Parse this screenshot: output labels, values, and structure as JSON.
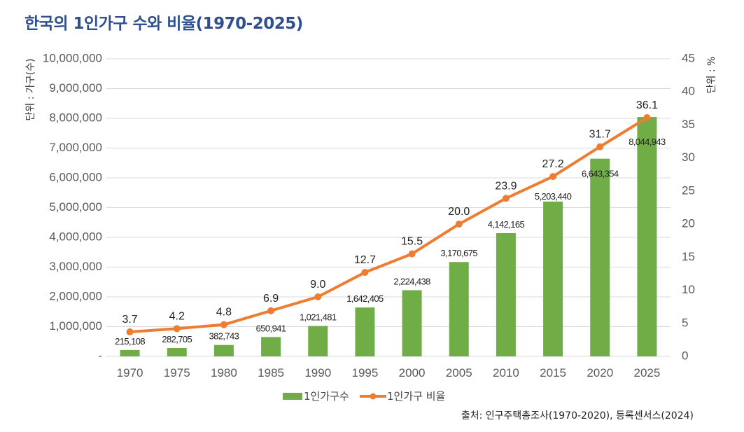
{
  "chart_data": {
    "type": "bar",
    "combo": "bar+line",
    "title": "한국의 1인가구 수와 비율(1970-2025)",
    "categories": [
      "1970",
      "1975",
      "1980",
      "1985",
      "1990",
      "1995",
      "2000",
      "2005",
      "2010",
      "2015",
      "2020",
      "2025"
    ],
    "series": [
      {
        "name": "1인가구수",
        "type": "bar",
        "axis": "left",
        "color": "#70ad47",
        "values": [
          215108,
          282705,
          382743,
          650941,
          1021481,
          1642405,
          2224438,
          3170675,
          4142165,
          5203440,
          6643354,
          8044943
        ],
        "labels": [
          "215,108",
          "282,705",
          "382,743",
          "650,941",
          "1,021,481",
          "1,642,405",
          "2,224,438",
          "3,170,675",
          "4,142,165",
          "5,203,440",
          "6,643,354",
          "8,044,943"
        ]
      },
      {
        "name": "1인가구 비율",
        "type": "line",
        "axis": "right",
        "color": "#ed7d31",
        "values": [
          3.7,
          4.2,
          4.8,
          6.9,
          9.0,
          12.7,
          15.5,
          20.0,
          23.9,
          27.2,
          31.7,
          36.1
        ],
        "labels": [
          "3.7",
          "4.2",
          "4.8",
          "6.9",
          "9.0",
          "12.7",
          "15.5",
          "20.0",
          "23.9",
          "27.2",
          "31.7",
          "36.1"
        ]
      }
    ],
    "y_left": {
      "label": "단위 : 가구(수)",
      "ylim": [
        0,
        10000000
      ],
      "ticks": [
        "-",
        "1,000,000",
        "2,000,000",
        "3,000,000",
        "4,000,000",
        "5,000,000",
        "6,000,000",
        "7,000,000",
        "8,000,000",
        "9,000,000",
        "10,000,000"
      ]
    },
    "y_right": {
      "label": "단위 : %",
      "ylim": [
        0,
        45
      ],
      "ticks": [
        "0",
        "5",
        "10",
        "15",
        "20",
        "25",
        "30",
        "35",
        "40",
        "45"
      ]
    },
    "xlabel": "",
    "grid": true,
    "legend": {
      "position": "bottom",
      "entries": [
        "1인가구수",
        "1인가구 비율"
      ]
    },
    "source": "출처: 인구주택총조사(1970-2020), 등록센서스(2024)"
  }
}
